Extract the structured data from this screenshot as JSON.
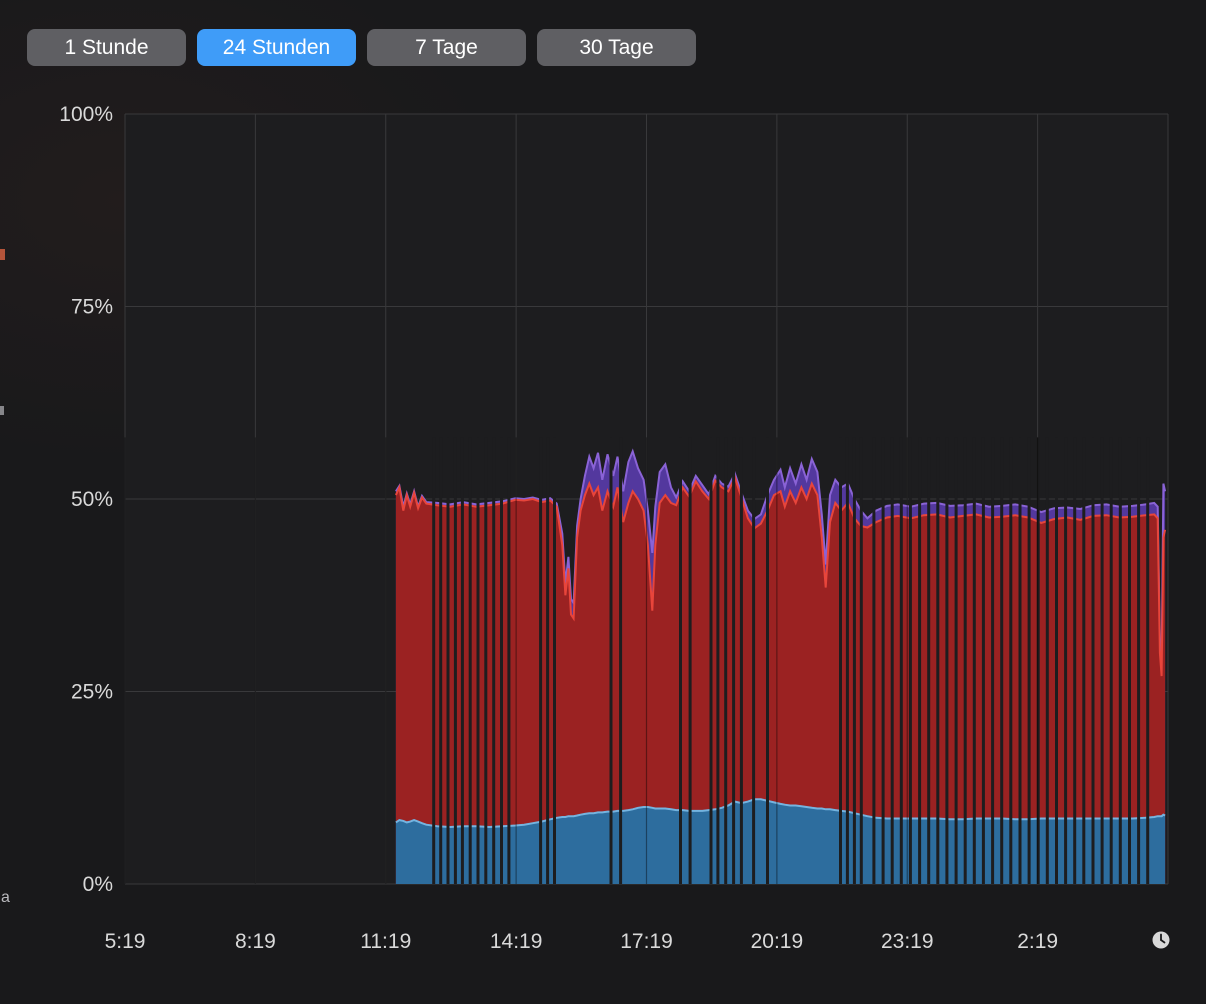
{
  "toolbar": {
    "ranges": [
      {
        "label": "1 Stunde",
        "selected": false
      },
      {
        "label": "24 Stunden",
        "selected": true
      },
      {
        "label": "7 Tage",
        "selected": false
      },
      {
        "label": "30 Tage",
        "selected": false
      }
    ]
  },
  "colors": {
    "panel_bg": "#19191b",
    "plot_bg": "#1d1d1f",
    "grid": "#39393b",
    "axis_text": "#d9d9d9",
    "button_gray": "#5f5f63",
    "button_blue": "#3f9cf8",
    "button_text": "#ffffff",
    "blue_fill": "#2d6d9e",
    "blue_line": "#74b4e0",
    "red_fill": "#9b2222",
    "red_line": "#e8453b",
    "purple_fill": "#53389e",
    "purple_line": "#8a63d6",
    "clock_icon": "#d9d9d9"
  },
  "artifacts": {
    "left_edge_letter": "a"
  },
  "chart_data": {
    "type": "area",
    "stacked": true,
    "title": "",
    "xlabel": "",
    "ylabel": "",
    "legend": "none",
    "grid": true,
    "y_range": [
      0,
      100
    ],
    "y_ticks": [
      {
        "value": 100,
        "label": "100%"
      },
      {
        "value": 75,
        "label": "75%"
      },
      {
        "value": 50,
        "label": "50%"
      },
      {
        "value": 25,
        "label": "25%"
      },
      {
        "value": 0,
        "label": "0%"
      }
    ],
    "x_range": [
      5.3167,
      29.3167
    ],
    "x_ticks": [
      {
        "hour": 5.3167,
        "label": "5:19"
      },
      {
        "hour": 8.3167,
        "label": "8:19"
      },
      {
        "hour": 11.3167,
        "label": "11:19"
      },
      {
        "hour": 14.3167,
        "label": "14:19"
      },
      {
        "hour": 17.3167,
        "label": "17:19"
      },
      {
        "hour": 20.3167,
        "label": "20:19"
      },
      {
        "hour": 23.3167,
        "label": "23:19"
      },
      {
        "hour": 26.3167,
        "label": "2:19"
      }
    ],
    "series": [
      {
        "name": "blue-bottom-layer"
      },
      {
        "name": "red-middle-layer"
      },
      {
        "name": "purple-top-layer"
      }
    ],
    "points_format": "[hour, blue_top, red_top, purple_top] cumulative % of CPU",
    "points": [
      [
        11.55,
        8.0,
        50.5,
        51.0
      ],
      [
        11.63,
        8.3,
        51.5,
        51.7
      ],
      [
        11.72,
        8.2,
        48.5,
        49.0
      ],
      [
        11.8,
        8.0,
        50.5,
        50.7
      ],
      [
        11.88,
        8.1,
        49.0,
        49.3
      ],
      [
        11.97,
        8.3,
        50.8,
        51.0
      ],
      [
        12.06,
        8.1,
        48.8,
        49.0
      ],
      [
        12.15,
        7.9,
        50.2,
        50.4
      ],
      [
        12.25,
        7.7,
        49.4,
        49.6
      ],
      [
        12.5,
        7.5,
        49.2,
        49.5
      ],
      [
        12.8,
        7.4,
        49.0,
        49.3
      ],
      [
        13.1,
        7.5,
        49.3,
        49.6
      ],
      [
        13.4,
        7.5,
        49.0,
        49.3
      ],
      [
        13.7,
        7.4,
        49.2,
        49.5
      ],
      [
        14.0,
        7.5,
        49.4,
        49.7
      ],
      [
        14.3,
        7.6,
        49.9,
        50.1
      ],
      [
        14.5,
        7.7,
        49.8,
        50.0
      ],
      [
        14.7,
        7.9,
        50.0,
        50.2
      ],
      [
        14.9,
        8.1,
        49.6,
        49.9
      ],
      [
        15.1,
        8.4,
        49.8,
        50.1
      ],
      [
        15.25,
        8.6,
        49.0,
        49.4
      ],
      [
        15.38,
        8.7,
        44.0,
        45.5
      ],
      [
        15.45,
        8.7,
        37.5,
        39.0
      ],
      [
        15.52,
        8.8,
        41.0,
        42.5
      ],
      [
        15.58,
        8.8,
        35.0,
        37.0
      ],
      [
        15.64,
        8.8,
        34.5,
        36.5
      ],
      [
        15.72,
        8.9,
        45.0,
        46.5
      ],
      [
        15.8,
        9.0,
        48.5,
        50.0
      ],
      [
        15.9,
        9.1,
        50.5,
        53.0
      ],
      [
        16.0,
        9.2,
        52.0,
        55.5
      ],
      [
        16.1,
        9.2,
        50.5,
        54.0
      ],
      [
        16.2,
        9.3,
        51.5,
        56.0
      ],
      [
        16.3,
        9.3,
        48.5,
        52.5
      ],
      [
        16.42,
        9.4,
        51.0,
        55.8
      ],
      [
        16.55,
        9.4,
        49.0,
        53.0
      ],
      [
        16.65,
        9.5,
        51.5,
        55.5
      ],
      [
        16.78,
        9.5,
        47.0,
        51.0
      ],
      [
        16.9,
        9.6,
        49.5,
        54.8
      ],
      [
        17.0,
        9.7,
        51.0,
        56.2
      ],
      [
        17.12,
        9.9,
        50.0,
        54.0
      ],
      [
        17.25,
        10.0,
        48.5,
        52.5
      ],
      [
        17.35,
        10.0,
        44.0,
        48.5
      ],
      [
        17.45,
        9.9,
        35.5,
        43.0
      ],
      [
        17.52,
        9.8,
        44.0,
        49.0
      ],
      [
        17.62,
        9.8,
        49.5,
        53.5
      ],
      [
        17.75,
        9.8,
        50.5,
        54.5
      ],
      [
        17.88,
        9.7,
        49.5,
        51.5
      ],
      [
        18.0,
        9.6,
        49.2,
        50.2
      ],
      [
        18.15,
        9.6,
        51.5,
        52.3
      ],
      [
        18.3,
        9.5,
        50.3,
        51.0
      ],
      [
        18.45,
        9.5,
        52.3,
        53.0
      ],
      [
        18.6,
        9.5,
        51.0,
        51.8
      ],
      [
        18.75,
        9.6,
        50.0,
        50.6
      ],
      [
        18.9,
        9.7,
        52.4,
        53.0
      ],
      [
        19.05,
        9.9,
        51.5,
        52.0
      ],
      [
        19.2,
        10.2,
        51.0,
        51.6
      ],
      [
        19.35,
        10.7,
        52.8,
        53.3
      ],
      [
        19.5,
        10.5,
        50.2,
        50.8
      ],
      [
        19.65,
        10.7,
        47.5,
        48.5
      ],
      [
        19.8,
        11.0,
        46.2,
        47.4
      ],
      [
        19.95,
        11.0,
        46.8,
        48.0
      ],
      [
        20.1,
        10.8,
        48.5,
        50.5
      ],
      [
        20.25,
        10.6,
        50.5,
        52.5
      ],
      [
        20.4,
        10.4,
        51.0,
        53.8
      ],
      [
        20.5,
        10.3,
        49.0,
        51.5
      ],
      [
        20.62,
        10.2,
        51.0,
        54.0
      ],
      [
        20.75,
        10.2,
        49.5,
        52.0
      ],
      [
        20.88,
        10.1,
        51.5,
        54.5
      ],
      [
        21.0,
        10.0,
        50.0,
        52.5
      ],
      [
        21.12,
        9.9,
        52.0,
        55.2
      ],
      [
        21.25,
        9.8,
        50.5,
        53.5
      ],
      [
        21.35,
        9.8,
        45.0,
        48.0
      ],
      [
        21.44,
        9.7,
        38.5,
        41.5
      ],
      [
        21.54,
        9.7,
        47.0,
        50.5
      ],
      [
        21.66,
        9.6,
        49.5,
        52.5
      ],
      [
        21.8,
        9.5,
        48.5,
        51.5
      ],
      [
        21.95,
        9.4,
        49.5,
        52.0
      ],
      [
        22.1,
        9.2,
        47.5,
        50.0
      ],
      [
        22.25,
        9.0,
        46.5,
        48.5
      ],
      [
        22.4,
        8.8,
        46.3,
        47.5
      ],
      [
        22.6,
        8.6,
        47.0,
        48.5
      ],
      [
        22.85,
        8.5,
        47.6,
        49.1
      ],
      [
        23.1,
        8.5,
        47.8,
        49.3
      ],
      [
        23.4,
        8.5,
        47.5,
        49.0
      ],
      [
        23.7,
        8.5,
        47.9,
        49.4
      ],
      [
        24.0,
        8.5,
        48.0,
        49.5
      ],
      [
        24.3,
        8.4,
        47.6,
        49.1
      ],
      [
        24.6,
        8.4,
        47.8,
        49.2
      ],
      [
        24.9,
        8.5,
        48.0,
        49.4
      ],
      [
        25.2,
        8.5,
        47.6,
        49.0
      ],
      [
        25.5,
        8.5,
        47.7,
        49.1
      ],
      [
        25.8,
        8.4,
        47.9,
        49.3
      ],
      [
        26.1,
        8.4,
        47.6,
        49.0
      ],
      [
        26.4,
        8.5,
        46.9,
        48.3
      ],
      [
        26.7,
        8.5,
        47.4,
        48.8
      ],
      [
        27.0,
        8.5,
        47.6,
        48.9
      ],
      [
        27.3,
        8.5,
        47.3,
        48.7
      ],
      [
        27.6,
        8.5,
        47.8,
        49.2
      ],
      [
        27.9,
        8.5,
        47.9,
        49.3
      ],
      [
        28.2,
        8.5,
        47.6,
        49.0
      ],
      [
        28.5,
        8.5,
        47.7,
        49.1
      ],
      [
        28.8,
        8.6,
        47.9,
        49.3
      ],
      [
        29.0,
        8.7,
        48.0,
        49.5
      ],
      [
        29.08,
        8.8,
        47.5,
        49.0
      ],
      [
        29.13,
        8.8,
        30.0,
        31.5
      ],
      [
        29.17,
        8.8,
        27.0,
        28.5
      ],
      [
        29.21,
        9.0,
        45.0,
        52.0
      ],
      [
        29.25,
        8.9,
        46.0,
        51.0
      ]
    ],
    "gaps": [
      12.42,
      12.58,
      12.75,
      12.92,
      13.08,
      13.26,
      13.44,
      13.62,
      13.8,
      13.98,
      14.15,
      14.88,
      15.04,
      15.2,
      16.5,
      16.72,
      18.1,
      18.32,
      18.8,
      18.96,
      19.14,
      19.32,
      19.5,
      19.78,
      20.1,
      21.78,
      21.94,
      22.1,
      22.26,
      22.55,
      22.76,
      22.97,
      23.18,
      23.39,
      23.6,
      23.81,
      24.02,
      24.23,
      24.44,
      24.65,
      24.86,
      25.07,
      25.28,
      25.49,
      25.7,
      25.91,
      26.12,
      26.33,
      26.54,
      26.75,
      26.96,
      27.17,
      27.38,
      27.59,
      27.8,
      28.01,
      28.22,
      28.43,
      28.64,
      28.85
    ]
  }
}
